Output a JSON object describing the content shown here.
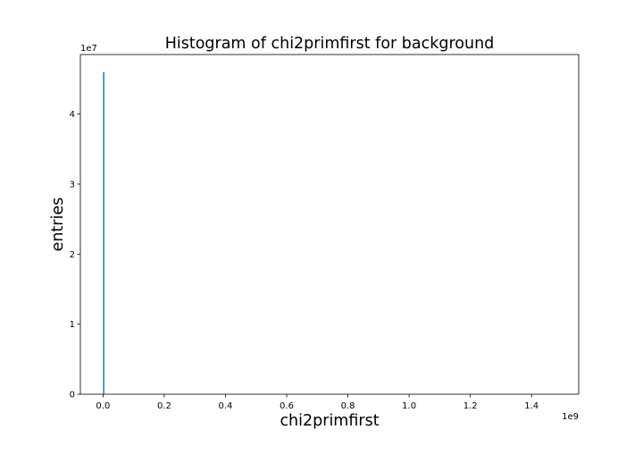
{
  "chart_data": {
    "type": "bar",
    "title": "Histogram of chi2primfirst for background",
    "xlabel": "chi2primfirst",
    "ylabel": "entries",
    "x_offset_label": "1e9",
    "y_offset_label": "1e7",
    "xlim": [
      -0.074,
      1.554
    ],
    "ylim": [
      0,
      4.85
    ],
    "x_ticks": [
      {
        "value": 0.0,
        "label": "0.0"
      },
      {
        "value": 0.2,
        "label": "0.2"
      },
      {
        "value": 0.4,
        "label": "0.4"
      },
      {
        "value": 0.6,
        "label": "0.6"
      },
      {
        "value": 0.8,
        "label": "0.8"
      },
      {
        "value": 1.0,
        "label": "1.0"
      },
      {
        "value": 1.2,
        "label": "1.2"
      },
      {
        "value": 1.4,
        "label": "1.4"
      }
    ],
    "y_ticks": [
      {
        "value": 0,
        "label": "0"
      },
      {
        "value": 1,
        "label": "1"
      },
      {
        "value": 2,
        "label": "2"
      },
      {
        "value": 3,
        "label": "3"
      },
      {
        "value": 4,
        "label": "4"
      }
    ],
    "bins": [
      {
        "x_start": 0.0,
        "x_end": 0.0035,
        "value": 4.6
      }
    ],
    "bar_color": "#1f77b4",
    "grid": false,
    "legend": "none"
  }
}
